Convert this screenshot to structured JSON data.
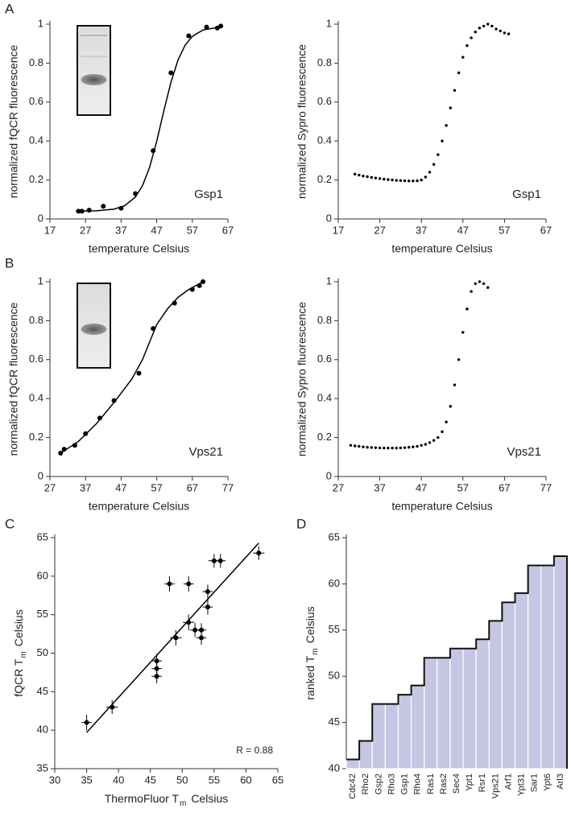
{
  "chart_data": [
    {
      "type": "scatter",
      "panel_label": "A",
      "xlabel": "temperature Celsius",
      "ylabel": "normalized fQCR fluorescence",
      "annotation": "Gsp1",
      "xlim": [
        17,
        67
      ],
      "xticks": [
        17,
        27,
        37,
        47,
        57,
        67
      ],
      "ylim": [
        0,
        1
      ],
      "yticks": [
        0,
        0.2,
        0.4,
        0.6,
        0.8,
        1
      ],
      "series": [
        {
          "style": "points",
          "color": "#000000",
          "x": [
            25,
            26,
            28,
            32,
            37,
            41,
            46,
            51,
            56,
            61,
            64,
            65
          ],
          "values": [
            0.04,
            0.04,
            0.045,
            0.065,
            0.055,
            0.13,
            0.35,
            0.75,
            0.94,
            0.985,
            0.98,
            0.99
          ]
        },
        {
          "style": "line",
          "color": "#000000",
          "x": [
            25,
            30,
            35,
            38,
            41,
            43,
            45,
            47,
            49,
            51,
            53,
            55,
            57,
            60,
            65
          ],
          "values": [
            0.04,
            0.042,
            0.05,
            0.068,
            0.112,
            0.171,
            0.265,
            0.399,
            0.555,
            0.702,
            0.817,
            0.893,
            0.937,
            0.97,
            0.986
          ]
        }
      ]
    },
    {
      "type": "scatter",
      "xlabel": "temperature Celsius",
      "ylabel": "normalized Sypro fluorescence",
      "annotation": "Gsp1",
      "xlim": [
        17,
        67
      ],
      "xticks": [
        17,
        27,
        37,
        47,
        57,
        67
      ],
      "ylim": [
        0,
        1
      ],
      "yticks": [
        0,
        0.2,
        0.4,
        0.6,
        0.8,
        1
      ],
      "series": [
        {
          "style": "points",
          "color": "#000000",
          "x": [
            21,
            22,
            23,
            24,
            25,
            26,
            27,
            28,
            29,
            30,
            31,
            32,
            33,
            34,
            35,
            36,
            37,
            38,
            39,
            40,
            41,
            42,
            43,
            44,
            45,
            46,
            47,
            48,
            49,
            50,
            51,
            52,
            53,
            54,
            55,
            56,
            57,
            58
          ],
          "values": [
            0.23,
            0.225,
            0.22,
            0.217,
            0.213,
            0.21,
            0.207,
            0.204,
            0.202,
            0.2,
            0.198,
            0.197,
            0.196,
            0.195,
            0.195,
            0.196,
            0.2,
            0.215,
            0.24,
            0.28,
            0.33,
            0.4,
            0.48,
            0.57,
            0.66,
            0.75,
            0.83,
            0.89,
            0.93,
            0.96,
            0.98,
            0.99,
            1.0,
            0.99,
            0.975,
            0.965,
            0.955,
            0.95
          ]
        }
      ]
    },
    {
      "type": "scatter",
      "panel_label": "B",
      "xlabel": "temperature Celsius",
      "ylabel": "normalized fQCR fluorescence",
      "annotation": "Vps21",
      "xlim": [
        27,
        77
      ],
      "xticks": [
        27,
        37,
        47,
        57,
        67,
        77
      ],
      "ylim": [
        0,
        1
      ],
      "yticks": [
        0,
        0.2,
        0.4,
        0.6,
        0.8,
        1
      ],
      "series": [
        {
          "style": "points",
          "color": "#000000",
          "x": [
            30,
            31,
            34,
            37,
            41,
            45,
            52,
            56,
            62,
            67,
            69,
            70
          ],
          "values": [
            0.12,
            0.14,
            0.16,
            0.22,
            0.3,
            0.39,
            0.53,
            0.76,
            0.89,
            0.96,
            0.98,
            1.0
          ]
        },
        {
          "style": "line",
          "color": "#000000",
          "x": [
            30,
            35,
            40,
            45,
            50,
            53,
            55,
            57,
            60,
            63,
            66,
            70
          ],
          "values": [
            0.12,
            0.18,
            0.27,
            0.38,
            0.5,
            0.6,
            0.69,
            0.78,
            0.86,
            0.92,
            0.96,
            1.0
          ]
        }
      ]
    },
    {
      "type": "scatter",
      "xlabel": "temperature Celsius",
      "ylabel": "normalized Sypro fluorescence",
      "annotation": "Vps21",
      "xlim": [
        27,
        77
      ],
      "xticks": [
        27,
        37,
        47,
        57,
        67,
        77
      ],
      "ylim": [
        0,
        1
      ],
      "yticks": [
        0,
        0.2,
        0.4,
        0.6,
        0.8,
        1
      ],
      "series": [
        {
          "style": "points",
          "color": "#000000",
          "x": [
            30,
            31,
            32,
            33,
            34,
            35,
            36,
            37,
            38,
            39,
            40,
            41,
            42,
            43,
            44,
            45,
            46,
            47,
            48,
            49,
            50,
            51,
            52,
            53,
            54,
            55,
            56,
            57,
            58,
            59,
            60,
            61,
            62,
            63
          ],
          "values": [
            0.16,
            0.157,
            0.155,
            0.152,
            0.15,
            0.149,
            0.148,
            0.147,
            0.146,
            0.146,
            0.146,
            0.146,
            0.147,
            0.148,
            0.15,
            0.152,
            0.155,
            0.16,
            0.165,
            0.174,
            0.185,
            0.2,
            0.23,
            0.28,
            0.36,
            0.47,
            0.6,
            0.74,
            0.86,
            0.95,
            0.99,
            1.0,
            0.99,
            0.97
          ]
        }
      ]
    },
    {
      "type": "scatter",
      "panel_label": "C",
      "xlabel": [
        "ThermoFluor T",
        "m",
        "Celsius"
      ],
      "ylabel": [
        "fQCR T",
        "m",
        "Celsius"
      ],
      "annotation": "R = 0.88",
      "xlim": [
        30,
        65
      ],
      "xticks": [
        30,
        35,
        40,
        45,
        50,
        55,
        60,
        65
      ],
      "ylim": [
        35,
        65
      ],
      "yticks": [
        35,
        40,
        45,
        50,
        55,
        60,
        65
      ],
      "series": [
        {
          "style": "points",
          "color": "#000000",
          "x": [
            35,
            39,
            46,
            46,
            46,
            49,
            48,
            51,
            51,
            52,
            53,
            53,
            54,
            54,
            55,
            56,
            62
          ],
          "values": [
            41,
            43,
            47,
            48,
            49,
            52,
            59,
            59,
            54,
            53,
            53,
            52,
            56,
            58,
            62,
            62,
            63
          ],
          "xerr": [
            0.8,
            0.9,
            0.8,
            0.8,
            0.8,
            0.9,
            0.8,
            0.8,
            0.9,
            0.8,
            0.8,
            0.8,
            0.8,
            0.8,
            0.9,
            0.8,
            0.9
          ],
          "yerr": [
            1,
            0.9,
            0.9,
            0.9,
            0.9,
            1,
            1,
            1,
            1,
            0.9,
            0.9,
            0.9,
            1,
            0.9,
            0.9,
            0.9,
            0.9
          ]
        },
        {
          "style": "line",
          "color": "#000000",
          "x": [
            35,
            62
          ],
          "values": [
            39.7,
            64.3
          ]
        }
      ]
    },
    {
      "type": "bar",
      "panel_label": "D",
      "ylabel": [
        "ranked T",
        "m",
        "Celsius"
      ],
      "color": "#c5c6e4",
      "categories": [
        "Cdc42",
        "Rho2",
        "Gsp2",
        "Rho3",
        "Gsp1",
        "Rho4",
        "Ras1",
        "Ras2",
        "Sec4",
        "Ypt1",
        "Rsr1",
        "Vps21",
        "Arf1",
        "Ypt31",
        "Sar1",
        "Ypt6",
        "Arl3"
      ],
      "values": [
        41,
        43,
        47,
        47,
        48,
        49,
        52,
        52,
        53,
        53,
        54,
        56,
        58,
        59,
        62,
        62,
        63
      ],
      "ylim": [
        40,
        65
      ],
      "yticks": [
        40,
        45,
        50,
        55,
        60,
        65
      ]
    }
  ]
}
